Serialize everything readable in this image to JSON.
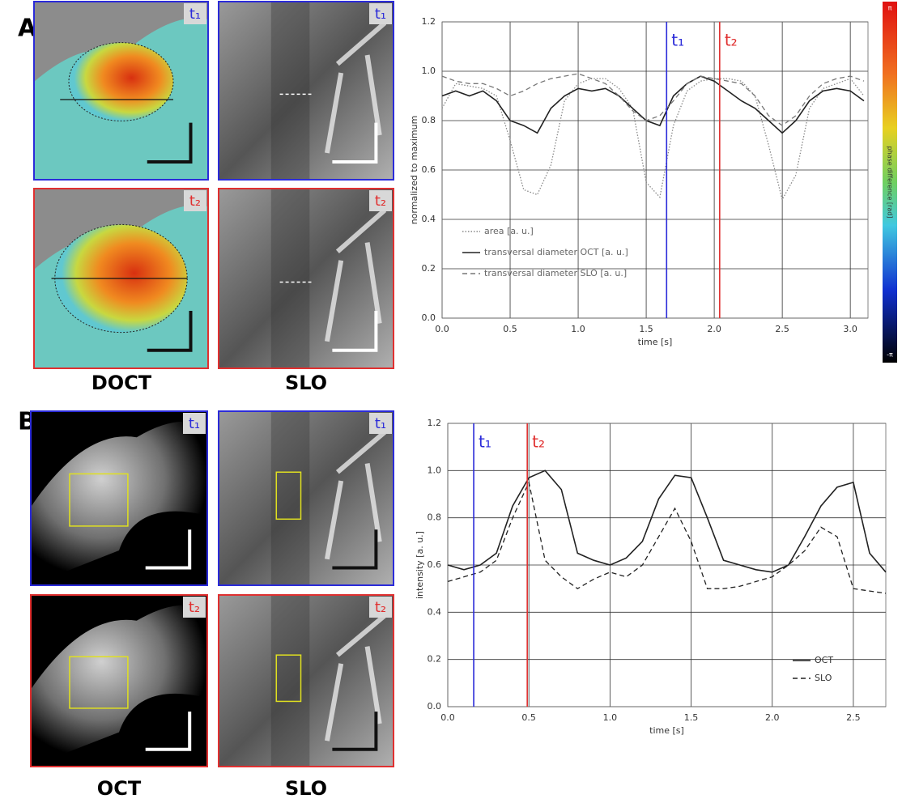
{
  "figure": {
    "panel_letters": [
      "A",
      "B"
    ],
    "image_captions": [
      "DOCT",
      "SLO",
      "OCT",
      "SLO"
    ],
    "badges": [
      "t₁",
      "t₂"
    ],
    "colorbar": {
      "max_label": "π",
      "min_label": "-π",
      "label": "phase difference [rad]"
    }
  },
  "chart_data": [
    {
      "type": "line",
      "xlabel": "time [s]",
      "ylabel": "normalized to maximum",
      "x": [
        0.0,
        0.1,
        0.2,
        0.3,
        0.4,
        0.5,
        0.6,
        0.7,
        0.8,
        0.9,
        1.0,
        1.1,
        1.2,
        1.3,
        1.4,
        1.5,
        1.6,
        1.7,
        1.8,
        1.9,
        2.0,
        2.1,
        2.2,
        2.3,
        2.4,
        2.5,
        2.6,
        2.7,
        2.8,
        2.9,
        3.0,
        3.1
      ],
      "xlim": [
        0,
        3.13
      ],
      "xticks": [
        {
          "value": 0,
          "label": "0.0"
        },
        {
          "value": 0.5,
          "label": "0.5"
        },
        {
          "value": 1,
          "label": "1.0"
        },
        {
          "value": 1.5,
          "label": "1.5"
        },
        {
          "value": 2,
          "label": "2.0"
        },
        {
          "value": 2.5,
          "label": "2.5"
        },
        {
          "value": 3,
          "label": "3.0"
        }
      ],
      "ylim": [
        0,
        1.2
      ],
      "yticks": [
        {
          "value": 0,
          "label": "0.0"
        },
        {
          "value": 0.2,
          "label": "0.2"
        },
        {
          "value": 0.4,
          "label": "0.4"
        },
        {
          "value": 0.6,
          "label": "0.6"
        },
        {
          "value": 0.8,
          "label": "0.8"
        },
        {
          "value": 1,
          "label": "1.0"
        },
        {
          "value": 1.2,
          "label": "1.2"
        }
      ],
      "grid": true,
      "legend": "lower left",
      "markers": [
        {
          "x": 1.65,
          "color": "#2b2bd9",
          "label": "t₁"
        },
        {
          "x": 2.04,
          "color": "#e03030",
          "label": "t₂"
        }
      ],
      "series": [
        {
          "name": "area [a. u.]",
          "color": "#888888",
          "style": "dotted",
          "values": [
            0.85,
            0.95,
            0.94,
            0.93,
            0.9,
            0.72,
            0.52,
            0.5,
            0.62,
            0.88,
            0.95,
            0.97,
            0.97,
            0.93,
            0.85,
            0.55,
            0.49,
            0.78,
            0.92,
            0.96,
            0.97,
            0.97,
            0.96,
            0.9,
            0.7,
            0.48,
            0.58,
            0.85,
            0.93,
            0.95,
            0.97,
            0.9
          ]
        },
        {
          "name": "transversal diameter OCT [a. u.]",
          "color": "#222222",
          "style": "solid",
          "values": [
            0.9,
            0.92,
            0.9,
            0.92,
            0.88,
            0.8,
            0.78,
            0.75,
            0.85,
            0.9,
            0.93,
            0.92,
            0.93,
            0.9,
            0.85,
            0.8,
            0.78,
            0.9,
            0.95,
            0.98,
            0.96,
            0.92,
            0.88,
            0.85,
            0.8,
            0.75,
            0.8,
            0.88,
            0.92,
            0.93,
            0.92,
            0.88
          ]
        },
        {
          "name": "transversal diameter SLO [a. u.]",
          "color": "#777777",
          "style": "dashed",
          "values": [
            0.98,
            0.96,
            0.95,
            0.95,
            0.93,
            0.9,
            0.92,
            0.95,
            0.97,
            0.98,
            0.99,
            0.97,
            0.95,
            0.9,
            0.84,
            0.8,
            0.82,
            0.88,
            0.95,
            0.98,
            0.97,
            0.96,
            0.95,
            0.9,
            0.82,
            0.78,
            0.82,
            0.9,
            0.95,
            0.97,
            0.98,
            0.96
          ]
        }
      ]
    },
    {
      "type": "line",
      "xlabel": "time [s]",
      "ylabel": "intensity [a. u.]",
      "x": [
        0.0,
        0.1,
        0.2,
        0.3,
        0.4,
        0.5,
        0.6,
        0.7,
        0.8,
        0.9,
        1.0,
        1.1,
        1.2,
        1.3,
        1.4,
        1.5,
        1.6,
        1.7,
        1.8,
        1.9,
        2.0,
        2.1,
        2.2,
        2.3,
        2.4,
        2.5,
        2.6,
        2.7
      ],
      "xlim": [
        0,
        2.7
      ],
      "xticks": [
        {
          "value": 0,
          "label": "0.0"
        },
        {
          "value": 0.5,
          "label": "0.5"
        },
        {
          "value": 1,
          "label": "1.0"
        },
        {
          "value": 1.5,
          "label": "1.5"
        },
        {
          "value": 2,
          "label": "2.0"
        },
        {
          "value": 2.5,
          "label": "2.5"
        }
      ],
      "ylim": [
        0,
        1.2
      ],
      "yticks": [
        {
          "value": 0,
          "label": "0.0"
        },
        {
          "value": 0.2,
          "label": "0.2"
        },
        {
          "value": 0.4,
          "label": "0.4"
        },
        {
          "value": 0.6,
          "label": "0.6"
        },
        {
          "value": 0.8,
          "label": "0.8"
        },
        {
          "value": 1,
          "label": "1.0"
        },
        {
          "value": 1.2,
          "label": "1.2"
        }
      ],
      "grid": true,
      "legend": "lower right",
      "markers": [
        {
          "x": 0.16,
          "color": "#2b2bd9",
          "label": "t₁"
        },
        {
          "x": 0.49,
          "color": "#e03030",
          "label": "t₂"
        }
      ],
      "series": [
        {
          "name": "OCT",
          "color": "#222222",
          "style": "solid",
          "values": [
            0.6,
            0.58,
            0.6,
            0.65,
            0.85,
            0.97,
            1.0,
            0.92,
            0.65,
            0.62,
            0.6,
            0.63,
            0.7,
            0.88,
            0.98,
            0.97,
            0.8,
            0.62,
            0.6,
            0.58,
            0.57,
            0.6,
            0.72,
            0.85,
            0.93,
            0.95,
            0.65,
            0.57
          ]
        },
        {
          "name": "SLO",
          "color": "#222222",
          "style": "dashed",
          "values": [
            0.53,
            0.55,
            0.57,
            0.62,
            0.8,
            0.95,
            0.62,
            0.55,
            0.5,
            0.54,
            0.57,
            0.55,
            0.6,
            0.72,
            0.84,
            0.7,
            0.5,
            0.5,
            0.51,
            0.53,
            0.55,
            0.6,
            0.66,
            0.76,
            0.72,
            0.5,
            0.49,
            0.48
          ]
        }
      ]
    }
  ]
}
